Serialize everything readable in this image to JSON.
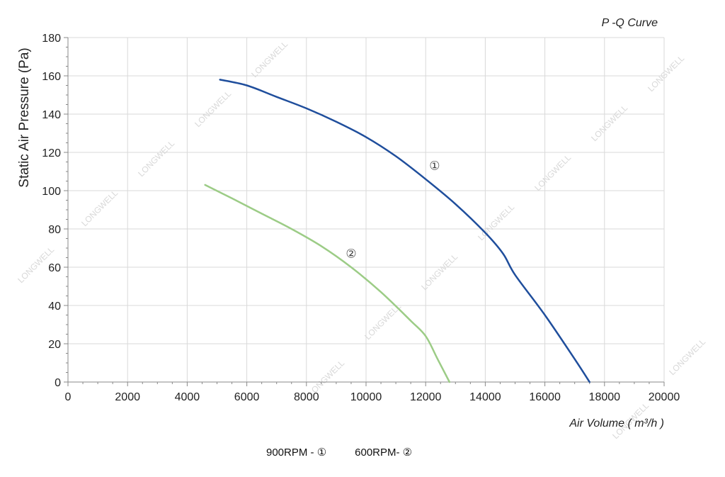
{
  "chart_data": {
    "type": "line",
    "title": "P -Q Curve",
    "xlabel": "Air Volume ( m³/h )",
    "ylabel": "Static Air Pressure  (Pa)",
    "xlim": [
      0,
      20000
    ],
    "ylim": [
      0,
      180
    ],
    "xticks": [
      "0",
      "2000",
      "4000",
      "6000",
      "8000",
      "10000",
      "12000",
      "14000",
      "16000",
      "18000",
      "20000"
    ],
    "yticks": [
      "0",
      "20",
      "40",
      "60",
      "80",
      "100",
      "120",
      "140",
      "160",
      "180"
    ],
    "grid": true,
    "series": [
      {
        "name": "900RPM - ①",
        "marker": "①",
        "color": "#1f4e9c",
        "x": [
          5100,
          6000,
          7000,
          8000,
          9000,
          10000,
          11000,
          12000,
          13000,
          14000,
          14600,
          15000,
          16000,
          17000,
          17500
        ],
        "y": [
          158,
          155,
          149,
          143,
          136,
          128,
          118,
          106,
          93,
          78,
          67,
          56,
          35,
          12,
          0
        ]
      },
      {
        "name": "600RPM- ②",
        "marker": "②",
        "color": "#9ccc86",
        "x": [
          4600,
          5500,
          6500,
          7500,
          8500,
          9500,
          10500,
          11500,
          12000,
          12400,
          12800
        ],
        "y": [
          103,
          96,
          88,
          80,
          71,
          60,
          47,
          32,
          24,
          12,
          0
        ]
      }
    ]
  },
  "legend": {
    "item1": "900RPM - ①",
    "item2": "600RPM- ②"
  },
  "watermark": "LONGWELL"
}
